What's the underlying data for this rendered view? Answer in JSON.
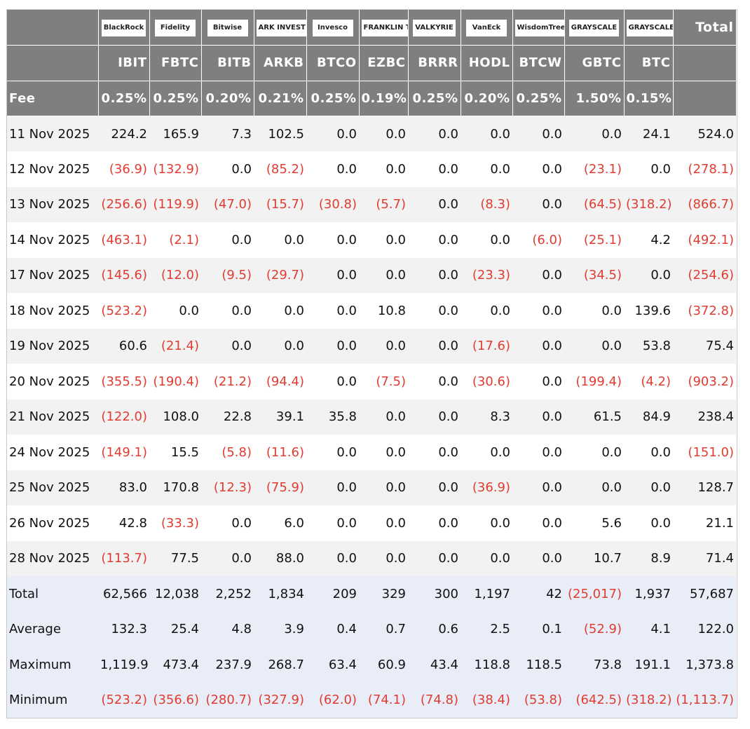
{
  "header": {
    "logos": [
      "BlackRock",
      "Fidelity",
      "Bitwise",
      "ARK INVEST",
      "Invesco",
      "FRANKLIN TEMPLETON",
      "VALKYRIE",
      "VanEck",
      "WisdomTree",
      "GRAYSCALE",
      "GRAYSCALE"
    ],
    "total_label": "Total",
    "tickers": [
      "IBIT",
      "FBTC",
      "BITB",
      "ARKB",
      "BTCO",
      "EZBC",
      "BRRR",
      "HODL",
      "BTCW",
      "GBTC",
      "BTC"
    ],
    "fee_label": "Fee",
    "fees": [
      "0.25%",
      "0.25%",
      "0.20%",
      "0.21%",
      "0.25%",
      "0.19%",
      "0.25%",
      "0.20%",
      "0.25%",
      "1.50%",
      "0.15%"
    ]
  },
  "rows": [
    {
      "date": "11 Nov 2025",
      "values": [
        "224.2",
        "165.9",
        "7.3",
        "102.5",
        "0.0",
        "0.0",
        "0.0",
        "0.0",
        "0.0",
        "0.0",
        "24.1",
        "524.0"
      ]
    },
    {
      "date": "12 Nov 2025",
      "values": [
        "(36.9)",
        "(132.9)",
        "0.0",
        "(85.2)",
        "0.0",
        "0.0",
        "0.0",
        "0.0",
        "0.0",
        "(23.1)",
        "0.0",
        "(278.1)"
      ]
    },
    {
      "date": "13 Nov 2025",
      "values": [
        "(256.6)",
        "(119.9)",
        "(47.0)",
        "(15.7)",
        "(30.8)",
        "(5.7)",
        "0.0",
        "(8.3)",
        "0.0",
        "(64.5)",
        "(318.2)",
        "(866.7)"
      ]
    },
    {
      "date": "14 Nov 2025",
      "values": [
        "(463.1)",
        "(2.1)",
        "0.0",
        "0.0",
        "0.0",
        "0.0",
        "0.0",
        "0.0",
        "(6.0)",
        "(25.1)",
        "4.2",
        "(492.1)"
      ]
    },
    {
      "date": "17 Nov 2025",
      "values": [
        "(145.6)",
        "(12.0)",
        "(9.5)",
        "(29.7)",
        "0.0",
        "0.0",
        "0.0",
        "(23.3)",
        "0.0",
        "(34.5)",
        "0.0",
        "(254.6)"
      ]
    },
    {
      "date": "18 Nov 2025",
      "values": [
        "(523.2)",
        "0.0",
        "0.0",
        "0.0",
        "0.0",
        "10.8",
        "0.0",
        "0.0",
        "0.0",
        "0.0",
        "139.6",
        "(372.8)"
      ]
    },
    {
      "date": "19 Nov 2025",
      "values": [
        "60.6",
        "(21.4)",
        "0.0",
        "0.0",
        "0.0",
        "0.0",
        "0.0",
        "(17.6)",
        "0.0",
        "0.0",
        "53.8",
        "75.4"
      ]
    },
    {
      "date": "20 Nov 2025",
      "values": [
        "(355.5)",
        "(190.4)",
        "(21.2)",
        "(94.4)",
        "0.0",
        "(7.5)",
        "0.0",
        "(30.6)",
        "0.0",
        "(199.4)",
        "(4.2)",
        "(903.2)"
      ]
    },
    {
      "date": "21 Nov 2025",
      "values": [
        "(122.0)",
        "108.0",
        "22.8",
        "39.1",
        "35.8",
        "0.0",
        "0.0",
        "8.3",
        "0.0",
        "61.5",
        "84.9",
        "238.4"
      ]
    },
    {
      "date": "24 Nov 2025",
      "values": [
        "(149.1)",
        "15.5",
        "(5.8)",
        "(11.6)",
        "0.0",
        "0.0",
        "0.0",
        "0.0",
        "0.0",
        "0.0",
        "0.0",
        "(151.0)"
      ]
    },
    {
      "date": "25 Nov 2025",
      "values": [
        "83.0",
        "170.8",
        "(12.3)",
        "(75.9)",
        "0.0",
        "0.0",
        "0.0",
        "(36.9)",
        "0.0",
        "0.0",
        "0.0",
        "128.7"
      ]
    },
    {
      "date": "26 Nov 2025",
      "values": [
        "42.8",
        "(33.3)",
        "0.0",
        "6.0",
        "0.0",
        "0.0",
        "0.0",
        "0.0",
        "0.0",
        "5.6",
        "0.0",
        "21.1"
      ]
    },
    {
      "date": "28 Nov 2025",
      "values": [
        "(113.7)",
        "77.5",
        "0.0",
        "88.0",
        "0.0",
        "0.0",
        "0.0",
        "0.0",
        "0.0",
        "10.7",
        "8.9",
        "71.4"
      ]
    }
  ],
  "summary": [
    {
      "label": "Total",
      "values": [
        "62,566",
        "12,038",
        "2,252",
        "1,834",
        "209",
        "329",
        "300",
        "1,197",
        "42",
        "(25,017)",
        "1,937",
        "57,687"
      ]
    },
    {
      "label": "Average",
      "values": [
        "132.3",
        "25.4",
        "4.8",
        "3.9",
        "0.4",
        "0.7",
        "0.6",
        "2.5",
        "0.1",
        "(52.9)",
        "4.1",
        "122.0"
      ]
    },
    {
      "label": "Maximum",
      "values": [
        "1,119.9",
        "473.4",
        "237.9",
        "268.7",
        "63.4",
        "60.9",
        "43.4",
        "118.8",
        "118.5",
        "73.8",
        "191.1",
        "1,373.8"
      ]
    },
    {
      "label": "Minimum",
      "values": [
        "(523.2)",
        "(356.6)",
        "(280.7)",
        "(327.9)",
        "(62.0)",
        "(74.1)",
        "(74.8)",
        "(38.4)",
        "(53.8)",
        "(642.5)",
        "(318.2)",
        "(1,113.7)"
      ]
    }
  ]
}
